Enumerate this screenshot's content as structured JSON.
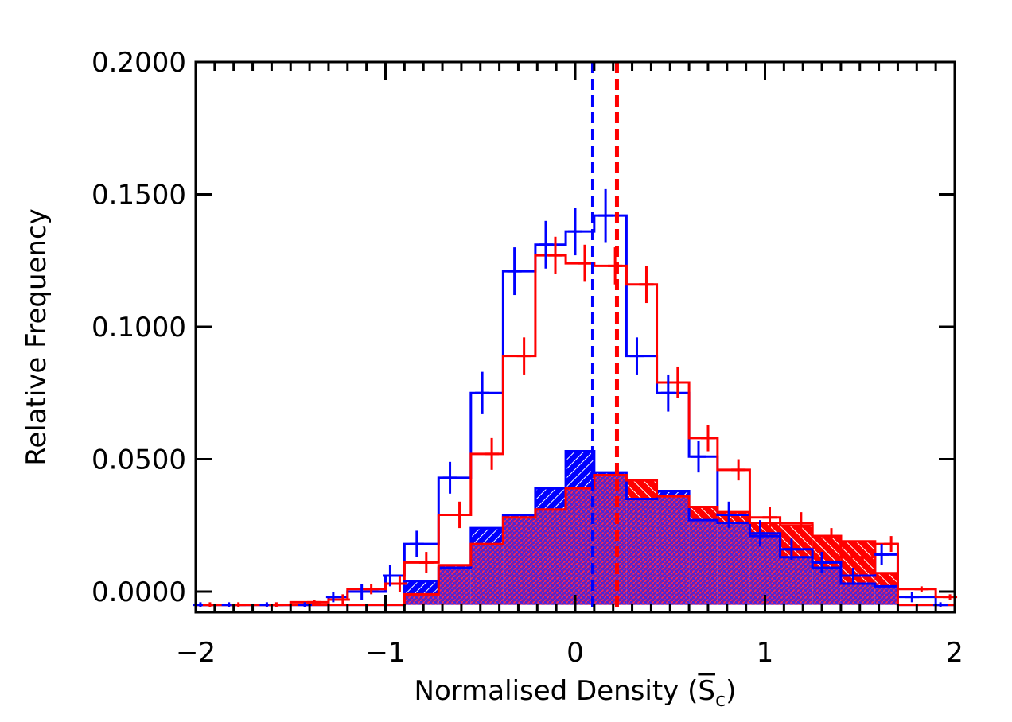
{
  "chart_data": {
    "type": "histogram",
    "xlabel": "Normalised Density (",
    "xlabel_symbol": "S",
    "xlabel_subscript": "c",
    "xlabel_end": ")",
    "ylabel": "Relative Frequency",
    "xlim": [
      -2,
      2
    ],
    "ylim": [
      0,
      0.2
    ],
    "y_tick_labels": [
      "0.0000",
      "0.0500",
      "0.1000",
      "0.1500",
      "0.2000"
    ],
    "y_ticks": [
      0,
      0.05,
      0.1,
      0.15,
      0.2
    ],
    "x_tick_labels": [
      "−2",
      "−1",
      "0",
      "1",
      "2"
    ],
    "x_ticks": [
      -2,
      -1,
      0,
      1,
      2
    ],
    "bin_edges": [
      -2.0,
      -1.9,
      -1.7,
      -1.5,
      -1.3,
      -1.2,
      -1.0,
      -0.9,
      -0.72,
      -0.55,
      -0.38,
      -0.21,
      -0.05,
      0.1,
      0.27,
      0.43,
      0.6,
      0.75,
      0.92,
      1.08,
      1.25,
      1.4,
      1.58,
      1.7,
      1.9,
      2.0
    ],
    "series": [
      {
        "kind": "outline",
        "color": "#0000ff",
        "values": [
          -0.005,
          -0.005,
          -0.005,
          -0.005,
          -0.002,
          0.0,
          0.006,
          0.018,
          0.043,
          0.075,
          0.121,
          0.131,
          0.136,
          0.142,
          0.089,
          0.075,
          0.051,
          0.029,
          0.022,
          0.016,
          0.011,
          0.006,
          0.014,
          -0.002,
          -0.005
        ],
        "errors": [
          0.001,
          0.001,
          0.001,
          0.001,
          0.002,
          0.003,
          0.004,
          0.005,
          0.006,
          0.008,
          0.009,
          0.009,
          0.009,
          0.01,
          0.007,
          0.007,
          0.006,
          0.005,
          0.005,
          0.004,
          0.004,
          0.003,
          0.004,
          0.002,
          0.001
        ]
      },
      {
        "kind": "outline",
        "color": "#ff0000",
        "values": [
          -0.005,
          -0.005,
          -0.005,
          -0.004,
          -0.003,
          0.001,
          0.003,
          0.011,
          0.029,
          0.052,
          0.089,
          0.127,
          0.124,
          0.123,
          0.116,
          0.079,
          0.058,
          0.046,
          0.028,
          0.026,
          0.021,
          0.013,
          0.018,
          0.001,
          -0.002
        ],
        "errors": [
          0.001,
          0.001,
          0.001,
          0.001,
          0.002,
          0.002,
          0.003,
          0.004,
          0.005,
          0.006,
          0.007,
          0.007,
          0.007,
          0.007,
          0.007,
          0.006,
          0.005,
          0.004,
          0.004,
          0.004,
          0.003,
          0.003,
          0.003,
          0.001,
          0.001
        ]
      },
      {
        "kind": "filled",
        "color": "#0000ff",
        "values": [
          -0.005,
          -0.005,
          -0.005,
          -0.005,
          -0.005,
          -0.005,
          -0.005,
          0.004,
          0.009,
          0.024,
          0.029,
          0.039,
          0.053,
          0.045,
          0.035,
          0.038,
          0.027,
          0.026,
          0.021,
          0.013,
          0.009,
          0.003,
          0.002,
          -0.005,
          -0.005
        ]
      },
      {
        "kind": "filled",
        "color": "#ff0000",
        "values": [
          -0.005,
          -0.005,
          -0.005,
          -0.005,
          -0.005,
          -0.005,
          -0.005,
          -0.001,
          0.01,
          0.018,
          0.028,
          0.031,
          0.039,
          0.044,
          0.042,
          0.036,
          0.032,
          0.03,
          0.026,
          0.025,
          0.021,
          0.019,
          0.007,
          -0.005,
          -0.005
        ]
      }
    ],
    "markers": [
      {
        "x": 0.09,
        "color": "#0000ff",
        "style": "dashed"
      },
      {
        "x": 0.22,
        "color": "#ff0000",
        "style": "dashed"
      }
    ]
  }
}
